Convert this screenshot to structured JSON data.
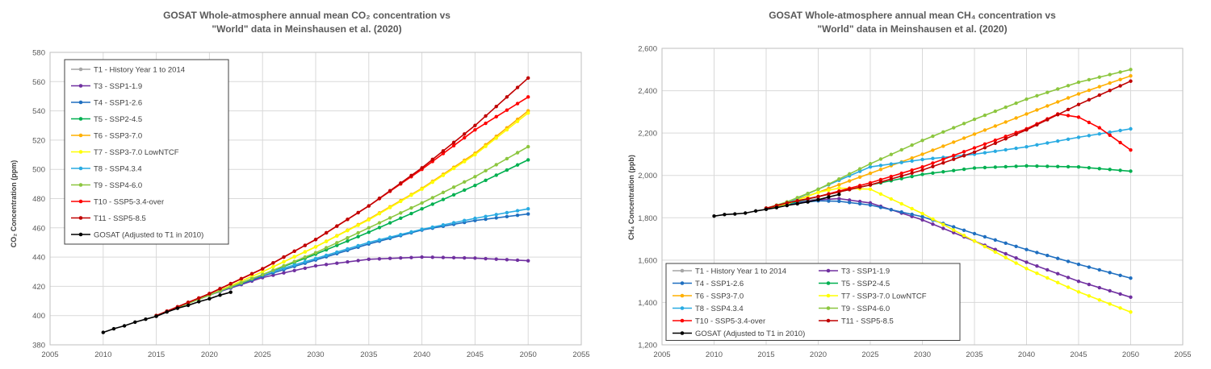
{
  "chart_data": [
    {
      "type": "line",
      "title_line1": "GOSAT Whole-atmosphere annual mean CO₂ concentration vs",
      "title_line2": "\"World\" data in Meinshausen et al. (2020)",
      "xlabel": "",
      "ylabel": "CO₂ Concentration (ppm)",
      "xlim": [
        2005,
        2055
      ],
      "ylim": [
        380,
        580
      ],
      "xticks": [
        2005,
        2010,
        2015,
        2020,
        2025,
        2030,
        2035,
        2040,
        2045,
        2050,
        2055
      ],
      "yticks": [
        380,
        400,
        420,
        440,
        460,
        480,
        500,
        520,
        540,
        560,
        580
      ],
      "ytick_labels": [
        "380",
        "400",
        "420",
        "440",
        "460",
        "480",
        "500",
        "520",
        "540",
        "560",
        "580"
      ],
      "grid": true,
      "legend_position": "top-left",
      "legend_columns": 1,
      "series": [
        {
          "name": "T1 - History Year 1 to 2014",
          "color": "#a6a6a6",
          "x": [
            2015,
            2020
          ],
          "values": [
            400.0,
            414.0
          ]
        },
        {
          "name": "T3 - SSP1-1.9",
          "color": "#7030a0",
          "x": [
            2015,
            2020,
            2025,
            2030,
            2035,
            2040,
            2045,
            2050
          ],
          "values": [
            400.0,
            414.0,
            426.0,
            434.0,
            438.5,
            440.0,
            439.3,
            437.5
          ]
        },
        {
          "name": "T4 - SSP1-2.6",
          "color": "#1f6fc0",
          "x": [
            2015,
            2020,
            2025,
            2030,
            2035,
            2040,
            2045,
            2050
          ],
          "values": [
            400.0,
            414.0,
            427.0,
            438.0,
            449.0,
            458.5,
            465.0,
            469.5
          ]
        },
        {
          "name": "T5 - SSP2-4.5",
          "color": "#00b050",
          "x": [
            2015,
            2020,
            2025,
            2030,
            2035,
            2040,
            2045,
            2050
          ],
          "values": [
            400.0,
            414.0,
            428.0,
            442.0,
            457.0,
            473.0,
            489.0,
            506.5
          ]
        },
        {
          "name": "T6 - SSP3-7.0",
          "color": "#ffb000",
          "x": [
            2015,
            2020,
            2025,
            2030,
            2035,
            2040,
            2045,
            2050
          ],
          "values": [
            400.0,
            414.0,
            430.0,
            447.0,
            466.0,
            487.0,
            511.0,
            540.0
          ]
        },
        {
          "name": "T7 - SSP3-7.0 LowNTCF",
          "color": "#ffff00",
          "x": [
            2015,
            2020,
            2025,
            2030,
            2035,
            2040,
            2045,
            2050
          ],
          "values": [
            400.0,
            414.0,
            430.0,
            447.0,
            465.5,
            486.5,
            510.0,
            538.5
          ]
        },
        {
          "name": "T8 - SSP4.3.4",
          "color": "#29abe2",
          "x": [
            2015,
            2020,
            2025,
            2030,
            2035,
            2040,
            2045,
            2050
          ],
          "values": [
            400.0,
            414.0,
            428.0,
            439.0,
            450.0,
            459.0,
            466.5,
            473.0
          ]
        },
        {
          "name": "T9 - SSP4-6.0",
          "color": "#8cc63f",
          "x": [
            2015,
            2020,
            2025,
            2030,
            2035,
            2040,
            2045,
            2050
          ],
          "values": [
            400.0,
            414.0,
            428.0,
            443.0,
            460.0,
            477.0,
            495.0,
            515.5
          ]
        },
        {
          "name": "T10 - SSP5-3.4-over",
          "color": "#ff0000",
          "x": [
            2015,
            2020,
            2025,
            2030,
            2035,
            2040,
            2045,
            2050
          ],
          "values": [
            400.0,
            415.0,
            432.0,
            452.0,
            475.0,
            500.0,
            527.0,
            549.5
          ]
        },
        {
          "name": "T11 - SSP5-8.5",
          "color": "#c00000",
          "x": [
            2015,
            2020,
            2025,
            2030,
            2035,
            2040,
            2045,
            2050
          ],
          "values": [
            400.0,
            415.0,
            432.0,
            452.0,
            475.0,
            501.0,
            530.0,
            562.5
          ]
        },
        {
          "name": "GOSAT (Adjusted to T1 in 2010)",
          "color": "#000000",
          "x": [
            2010,
            2011,
            2012,
            2013,
            2014,
            2015,
            2016,
            2017,
            2018,
            2019,
            2020,
            2021,
            2022
          ],
          "values": [
            388.5,
            391.0,
            393.0,
            395.5,
            397.5,
            399.5,
            402.5,
            405.0,
            407.0,
            409.5,
            411.5,
            414.0,
            416.0
          ]
        }
      ]
    },
    {
      "type": "line",
      "title_line1": "GOSAT Whole-atmosphere annual mean CH₄ concentration vs",
      "title_line2": "\"World\" data in Meinshausen et al. (2020)",
      "xlabel": "",
      "ylabel": "CH₄ Concentration (ppb)",
      "xlim": [
        2005,
        2055
      ],
      "ylim": [
        1200,
        2600
      ],
      "xticks": [
        2005,
        2010,
        2015,
        2020,
        2025,
        2030,
        2035,
        2040,
        2045,
        2050,
        2055
      ],
      "yticks": [
        1200,
        1400,
        1600,
        1800,
        2000,
        2200,
        2400,
        2600
      ],
      "ytick_labels": [
        "1,200",
        "1,400",
        "1,600",
        "1,800",
        "2,000",
        "2,200",
        "2,400",
        "2,600"
      ],
      "grid": true,
      "legend_position": "bottom-left",
      "legend_columns": 2,
      "series": [
        {
          "name": "T1 - History Year 1 to 2014",
          "color": "#a6a6a6",
          "x": [
            2015,
            2017,
            2020
          ],
          "values": [
            1845,
            1865,
            1890
          ]
        },
        {
          "name": "T3 - SSP1-1.9",
          "color": "#7030a0",
          "x": [
            2015,
            2017,
            2020,
            2022,
            2025,
            2030,
            2035,
            2040,
            2045,
            2050
          ],
          "values": [
            1845,
            1865,
            1885,
            1890,
            1870,
            1790,
            1690,
            1590,
            1500,
            1425
          ]
        },
        {
          "name": "T4 - SSP1-2.6",
          "color": "#1f6fc0",
          "x": [
            2015,
            2017,
            2020,
            2022,
            2025,
            2030,
            2035,
            2040,
            2045,
            2050
          ],
          "values": [
            1845,
            1865,
            1880,
            1878,
            1860,
            1805,
            1725,
            1650,
            1580,
            1515
          ]
        },
        {
          "name": "T5 - SSP2-4.5",
          "color": "#00b050",
          "x": [
            2015,
            2017,
            2020,
            2025,
            2030,
            2035,
            2040,
            2045,
            2050
          ],
          "values": [
            1845,
            1865,
            1900,
            1955,
            2005,
            2035,
            2045,
            2040,
            2020
          ]
        },
        {
          "name": "T6 - SSP3-7.0",
          "color": "#ffb000",
          "x": [
            2015,
            2017,
            2020,
            2025,
            2030,
            2035,
            2040,
            2045,
            2050
          ],
          "values": [
            1845,
            1870,
            1920,
            2010,
            2100,
            2195,
            2290,
            2385,
            2470
          ]
        },
        {
          "name": "T7 - SSP3-7.0 LowNTCF",
          "color": "#ffff00",
          "x": [
            2015,
            2017,
            2020,
            2022,
            2025,
            2030,
            2035,
            2040,
            2045,
            2050
          ],
          "values": [
            1845,
            1865,
            1920,
            1940,
            1935,
            1820,
            1690,
            1560,
            1450,
            1355
          ]
        },
        {
          "name": "T8 - SSP4.3.4",
          "color": "#29abe2",
          "x": [
            2015,
            2017,
            2020,
            2025,
            2030,
            2035,
            2040,
            2045,
            2050
          ],
          "values": [
            1845,
            1870,
            1935,
            2040,
            2075,
            2100,
            2135,
            2180,
            2220
          ]
        },
        {
          "name": "T9 - SSP4-6.0",
          "color": "#8cc63f",
          "x": [
            2015,
            2017,
            2020,
            2025,
            2030,
            2035,
            2040,
            2045,
            2050
          ],
          "values": [
            1845,
            1875,
            1935,
            2055,
            2165,
            2265,
            2360,
            2440,
            2500
          ]
        },
        {
          "name": "T10 - SSP5-3.4-over",
          "color": "#ff0000",
          "x": [
            2015,
            2017,
            2020,
            2025,
            2030,
            2035,
            2040,
            2043,
            2045,
            2047,
            2050
          ],
          "values": [
            1845,
            1870,
            1900,
            1965,
            2040,
            2130,
            2220,
            2290,
            2275,
            2225,
            2120
          ]
        },
        {
          "name": "T11 - SSP5-8.5",
          "color": "#c00000",
          "x": [
            2015,
            2017,
            2020,
            2025,
            2030,
            2035,
            2040,
            2045,
            2050
          ],
          "values": [
            1845,
            1870,
            1900,
            1955,
            2025,
            2110,
            2215,
            2335,
            2445
          ]
        },
        {
          "name": "GOSAT (Adjusted to T1 in 2010)",
          "color": "#000000",
          "x": [
            2010,
            2011,
            2012,
            2013,
            2014,
            2015,
            2016,
            2017,
            2018,
            2019,
            2020,
            2021,
            2022
          ],
          "values": [
            1808,
            1815,
            1818,
            1822,
            1832,
            1840,
            1848,
            1858,
            1866,
            1875,
            1885,
            1898,
            1910
          ]
        }
      ]
    }
  ]
}
